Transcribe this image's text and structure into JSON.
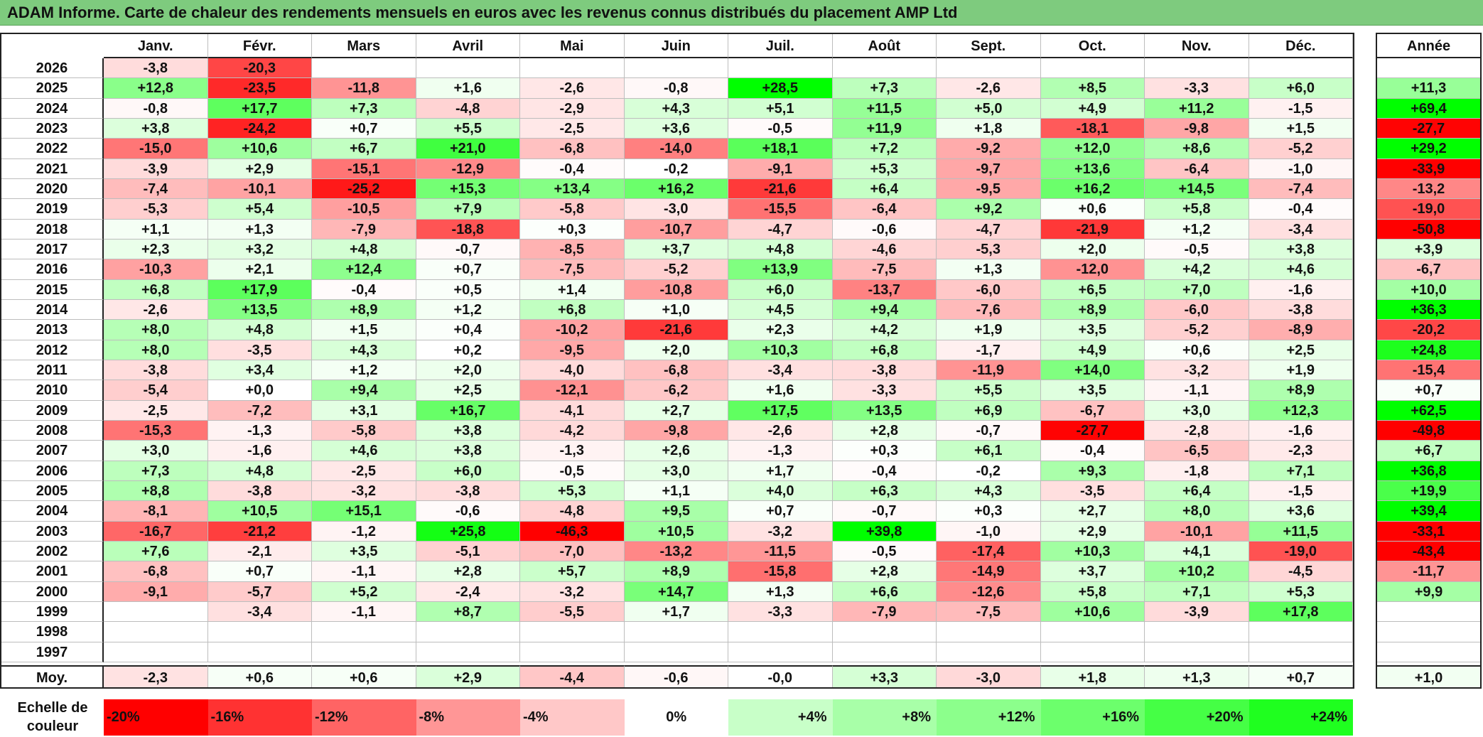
{
  "title": "ADAM Informe. Carte de chaleur des rendements mensuels en euros avec les revenus connus distribués du placement AMP Ltd",
  "chart_data": {
    "type": "heatmap",
    "title": "ADAM Informe. Carte de chaleur des rendements mensuels en euros avec les revenus connus distribués du placement AMP Ltd",
    "months": [
      "Janv.",
      "Févr.",
      "Mars",
      "Avril",
      "Mai",
      "Juin",
      "Juil.",
      "Août",
      "Sept.",
      "Oct.",
      "Nov.",
      "Déc."
    ],
    "year_header": "Année",
    "rows": [
      {
        "year": "2026",
        "values": [
          "-3,8",
          "-20,3",
          "",
          "",
          "",
          "",
          "",
          "",
          "",
          "",
          "",
          ""
        ],
        "annual": ""
      },
      {
        "year": "2025",
        "values": [
          "+12,8",
          "-23,5",
          "-11,8",
          "+1,6",
          "-2,6",
          "-0,8",
          "+28,5",
          "+7,3",
          "-2,6",
          "+8,5",
          "-3,3",
          "+6,0"
        ],
        "annual": "+11,3"
      },
      {
        "year": "2024",
        "values": [
          "-0,8",
          "+17,7",
          "+7,3",
          "-4,8",
          "-2,9",
          "+4,3",
          "+5,1",
          "+11,5",
          "+5,0",
          "+4,9",
          "+11,2",
          "-1,5"
        ],
        "annual": "+69,4"
      },
      {
        "year": "2023",
        "values": [
          "+3,8",
          "-24,2",
          "+0,7",
          "+5,5",
          "-2,5",
          "+3,6",
          "-0,5",
          "+11,9",
          "+1,8",
          "-18,1",
          "-9,8",
          "+1,5"
        ],
        "annual": "-27,7"
      },
      {
        "year": "2022",
        "values": [
          "-15,0",
          "+10,6",
          "+6,7",
          "+21,0",
          "-6,8",
          "-14,0",
          "+18,1",
          "+7,2",
          "-9,2",
          "+12,0",
          "+8,6",
          "-5,2"
        ],
        "annual": "+29,2"
      },
      {
        "year": "2021",
        "values": [
          "-3,9",
          "+2,9",
          "-15,1",
          "-12,9",
          "-0,4",
          "-0,2",
          "-9,1",
          "+5,3",
          "-9,7",
          "+13,6",
          "-6,4",
          "-1,0"
        ],
        "annual": "-33,9"
      },
      {
        "year": "2020",
        "values": [
          "-7,4",
          "-10,1",
          "-25,2",
          "+15,3",
          "+13,4",
          "+16,2",
          "-21,6",
          "+6,4",
          "-9,5",
          "+16,2",
          "+14,5",
          "-7,4"
        ],
        "annual": "-13,2"
      },
      {
        "year": "2019",
        "values": [
          "-5,3",
          "+5,4",
          "-10,5",
          "+7,9",
          "-5,8",
          "-3,0",
          "-15,5",
          "-6,4",
          "+9,2",
          "+0,6",
          "+5,8",
          "-0,4"
        ],
        "annual": "-19,0"
      },
      {
        "year": "2018",
        "values": [
          "+1,1",
          "+1,3",
          "-7,9",
          "-18,8",
          "+0,3",
          "-10,7",
          "-4,7",
          "-0,6",
          "-4,7",
          "-21,9",
          "+1,2",
          "-3,4"
        ],
        "annual": "-50,8"
      },
      {
        "year": "2017",
        "values": [
          "+2,3",
          "+3,2",
          "+4,8",
          "-0,7",
          "-8,5",
          "+3,7",
          "+4,8",
          "-4,6",
          "-5,3",
          "+2,0",
          "-0,5",
          "+3,8"
        ],
        "annual": "+3,9"
      },
      {
        "year": "2016",
        "values": [
          "-10,3",
          "+2,1",
          "+12,4",
          "+0,7",
          "-7,5",
          "-5,2",
          "+13,9",
          "-7,5",
          "+1,3",
          "-12,0",
          "+4,2",
          "+4,6"
        ],
        "annual": "-6,7"
      },
      {
        "year": "2015",
        "values": [
          "+6,8",
          "+17,9",
          "-0,4",
          "+0,5",
          "+1,4",
          "-10,8",
          "+6,0",
          "-13,7",
          "-6,0",
          "+6,5",
          "+7,0",
          "-1,6"
        ],
        "annual": "+10,0"
      },
      {
        "year": "2014",
        "values": [
          "-2,6",
          "+13,5",
          "+8,9",
          "+1,2",
          "+6,8",
          "+1,0",
          "+4,5",
          "+9,4",
          "-7,6",
          "+8,9",
          "-6,0",
          "-3,8"
        ],
        "annual": "+36,3"
      },
      {
        "year": "2013",
        "values": [
          "+8,0",
          "+4,8",
          "+1,5",
          "+0,4",
          "-10,2",
          "-21,6",
          "+2,3",
          "+4,2",
          "+1,9",
          "+3,5",
          "-5,2",
          "-8,9"
        ],
        "annual": "-20,2"
      },
      {
        "year": "2012",
        "values": [
          "+8,0",
          "-3,5",
          "+4,3",
          "+0,2",
          "-9,5",
          "+2,0",
          "+10,3",
          "+6,8",
          "-1,7",
          "+4,9",
          "+0,6",
          "+2,5"
        ],
        "annual": "+24,8"
      },
      {
        "year": "2011",
        "values": [
          "-3,8",
          "+3,4",
          "+1,2",
          "+2,0",
          "-4,0",
          "-6,8",
          "-3,4",
          "-3,8",
          "-11,9",
          "+14,0",
          "-3,2",
          "+1,9"
        ],
        "annual": "-15,4"
      },
      {
        "year": "2010",
        "values": [
          "-5,4",
          "+0,0",
          "+9,4",
          "+2,5",
          "-12,1",
          "-6,2",
          "+1,6",
          "-3,3",
          "+5,5",
          "+3,5",
          "-1,1",
          "+8,9"
        ],
        "annual": "+0,7"
      },
      {
        "year": "2009",
        "values": [
          "-2,5",
          "-7,2",
          "+3,1",
          "+16,7",
          "-4,1",
          "+2,7",
          "+17,5",
          "+13,5",
          "+6,9",
          "-6,7",
          "+3,0",
          "+12,3"
        ],
        "annual": "+62,5"
      },
      {
        "year": "2008",
        "values": [
          "-15,3",
          "-1,3",
          "-5,8",
          "+3,8",
          "-4,2",
          "-9,8",
          "-2,6",
          "+2,8",
          "-0,7",
          "-27,7",
          "-2,8",
          "-1,6"
        ],
        "annual": "-49,8"
      },
      {
        "year": "2007",
        "values": [
          "+3,0",
          "-1,6",
          "+4,6",
          "+3,8",
          "-1,3",
          "+2,6",
          "-1,3",
          "+0,3",
          "+6,1",
          "-0,4",
          "-6,5",
          "-2,3"
        ],
        "annual": "+6,7"
      },
      {
        "year": "2006",
        "values": [
          "+7,3",
          "+4,8",
          "-2,5",
          "+6,0",
          "-0,5",
          "+3,0",
          "+1,7",
          "-0,4",
          "-0,2",
          "+9,3",
          "-1,8",
          "+7,1"
        ],
        "annual": "+36,8"
      },
      {
        "year": "2005",
        "values": [
          "+8,8",
          "-3,8",
          "-3,2",
          "-3,8",
          "+5,3",
          "+1,1",
          "+4,0",
          "+6,3",
          "+4,3",
          "-3,5",
          "+6,4",
          "-1,5"
        ],
        "annual": "+19,9"
      },
      {
        "year": "2004",
        "values": [
          "-8,1",
          "+10,5",
          "+15,1",
          "-0,6",
          "-4,8",
          "+9,5",
          "+0,7",
          "-0,7",
          "+0,3",
          "+2,7",
          "+8,0",
          "+3,6"
        ],
        "annual": "+39,4"
      },
      {
        "year": "2003",
        "values": [
          "-16,7",
          "-21,2",
          "-1,2",
          "+25,8",
          "-46,3",
          "+10,5",
          "-3,2",
          "+39,8",
          "-1,0",
          "+2,9",
          "-10,1",
          "+11,5"
        ],
        "annual": "-33,1"
      },
      {
        "year": "2002",
        "values": [
          "+7,6",
          "-2,1",
          "+3,5",
          "-5,1",
          "-7,0",
          "-13,2",
          "-11,5",
          "-0,5",
          "-17,4",
          "+10,3",
          "+4,1",
          "-19,0"
        ],
        "annual": "-43,4"
      },
      {
        "year": "2001",
        "values": [
          "-6,8",
          "+0,7",
          "-1,1",
          "+2,8",
          "+5,7",
          "+8,9",
          "-15,8",
          "+2,8",
          "-14,9",
          "+3,7",
          "+10,2",
          "-4,5"
        ],
        "annual": "-11,7"
      },
      {
        "year": "2000",
        "values": [
          "-9,1",
          "-5,7",
          "+5,2",
          "-2,4",
          "-3,2",
          "+14,7",
          "+1,3",
          "+6,6",
          "-12,6",
          "+5,8",
          "+7,1",
          "+5,3"
        ],
        "annual": "+9,9"
      },
      {
        "year": "1999",
        "values": [
          "",
          "-3,4",
          "-1,1",
          "+8,7",
          "-5,5",
          "+1,7",
          "-3,3",
          "-7,9",
          "-7,5",
          "+10,6",
          "-3,9",
          "+17,8"
        ],
        "annual": ""
      },
      {
        "year": "1998",
        "values": [
          "",
          "",
          "",
          "",
          "",
          "",
          "",
          "",
          "",
          "",
          "",
          ""
        ],
        "annual": ""
      },
      {
        "year": "1997",
        "values": [
          "",
          "",
          "",
          "",
          "",
          "",
          "",
          "",
          "",
          "",
          "",
          ""
        ],
        "annual": ""
      }
    ],
    "average": {
      "label": "Moy.",
      "values": [
        "-2,3",
        "+0,6",
        "+0,6",
        "+2,9",
        "-4,4",
        "-0,6",
        "-0,0",
        "+3,3",
        "-3,0",
        "+1,8",
        "+1,3",
        "+0,7"
      ],
      "annual": "+1,0"
    },
    "scale": {
      "label": "Echelle de couleur",
      "labels": [
        "-20%",
        "-16%",
        "-12%",
        "-8%",
        "-4%",
        "0%",
        "+4%",
        "+8%",
        "+12%",
        "+16%",
        "+20%",
        "+24%"
      ],
      "colors": [
        "#ff0000",
        "#ff3232",
        "#ff6464",
        "#ff9696",
        "#ffc8c8",
        "#ffffff",
        "#c8ffc8",
        "#a8ffa8",
        "#8cff8c",
        "#6cff6c",
        "#45ff45",
        "#1fff1f"
      ]
    }
  }
}
